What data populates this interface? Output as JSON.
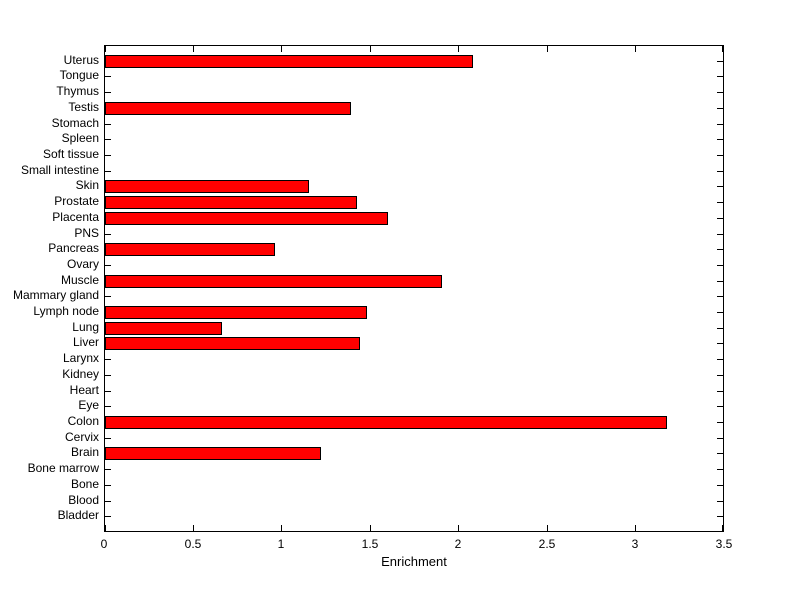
{
  "chart_data": {
    "type": "bar",
    "orientation": "horizontal",
    "title": "",
    "xlabel": "Enrichment",
    "ylabel": "",
    "xlim": [
      0,
      3.5
    ],
    "xticks": [
      "0",
      "0.5",
      "1",
      "1.5",
      "2",
      "2.5",
      "3",
      "3.5"
    ],
    "xtick_values": [
      0,
      0.5,
      1,
      1.5,
      2,
      2.5,
      3,
      3.5
    ],
    "categories": [
      "Uterus",
      "Tongue",
      "Thymus",
      "Testis",
      "Stomach",
      "Spleen",
      "Soft tissue",
      "Small intestine",
      "Skin",
      "Prostate",
      "Placenta",
      "PNS",
      "Pancreas",
      "Ovary",
      "Muscle",
      "Mammary gland",
      "Lymph node",
      "Lung",
      "Liver",
      "Larynx",
      "Kidney",
      "Heart",
      "Eye",
      "Colon",
      "Cervix",
      "Brain",
      "Bone marrow",
      "Bone",
      "Blood",
      "Bladder"
    ],
    "values": [
      2.08,
      0,
      0,
      1.39,
      0,
      0,
      0,
      0,
      1.15,
      1.42,
      1.6,
      0,
      0.96,
      0,
      1.9,
      0,
      1.48,
      0.66,
      1.44,
      0,
      0,
      0,
      0,
      3.17,
      0,
      1.22,
      0,
      0,
      0,
      0
    ],
    "grid": false,
    "legend": null,
    "colors": {
      "bar_fill": "#FF0000",
      "bar_edge": "#000000",
      "axis": "#000000",
      "background": "#FFFFFF",
      "text": "#000000"
    }
  }
}
